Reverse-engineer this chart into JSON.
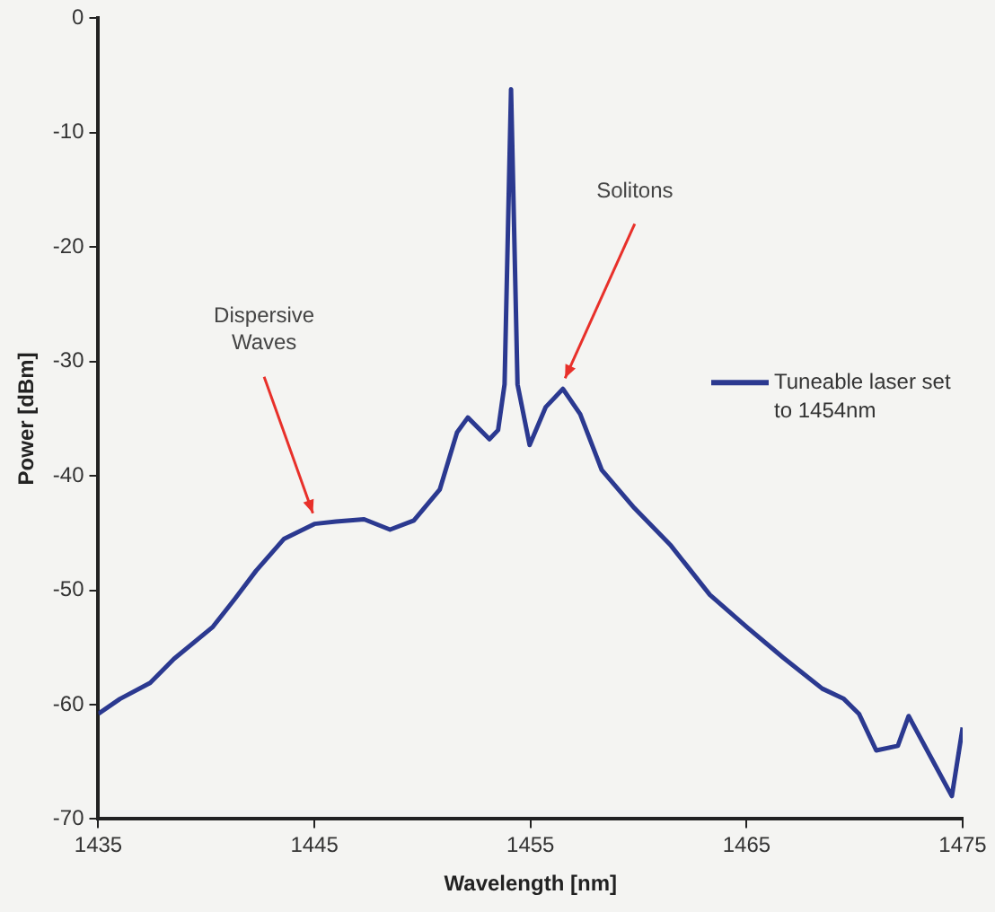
{
  "chart_data": {
    "type": "line",
    "xlabel": "Wavelength [nm]",
    "ylabel": "Power [dBm]",
    "x": [
      1435,
      1436,
      1437.4,
      1438.5,
      1440.3,
      1441.3,
      1442.3,
      1443.6,
      1445,
      1446,
      1447.3,
      1448.5,
      1449.6,
      1450.8,
      1451.6,
      1452.1,
      1453.1,
      1453.5,
      1453.8,
      1454.1,
      1454.4,
      1454.96,
      1455.7,
      1456.5,
      1457.3,
      1458.3,
      1459.8,
      1461.5,
      1463.3,
      1465,
      1466.7,
      1468.5,
      1469.5,
      1470.2,
      1471,
      1472,
      1472.5,
      1473.7,
      1474.5,
      1475
    ],
    "series": [
      {
        "name": "Tuneable laser set to 1454nm",
        "color": "#2b3990",
        "values": [
          -60.8,
          -59.5,
          -58.1,
          -56,
          -53.2,
          -50.8,
          -48.3,
          -45.5,
          -44.2,
          -44,
          -43.8,
          -44.7,
          -43.9,
          -41.2,
          -36.2,
          -34.9,
          -36.8,
          -36,
          -32,
          -6.2,
          -32,
          -37.3,
          -34,
          -32.4,
          -34.6,
          -39.5,
          -42.8,
          -46.1,
          -50.4,
          -53.2,
          -55.9,
          -58.6,
          -59.5,
          -60.8,
          -64,
          -63.6,
          -61,
          -65.2,
          -68,
          -62
        ]
      }
    ],
    "xlim": [
      1435,
      1475
    ],
    "xticks": [
      1435,
      1445,
      1455,
      1465,
      1475
    ],
    "ylim": [
      -70,
      0
    ],
    "yticks": [
      -70,
      -60,
      -50,
      -40,
      -30,
      -20,
      -10,
      0
    ],
    "grid": false,
    "legend": "right",
    "marker": "none",
    "line_style": "solid",
    "annotations": [
      {
        "text": "Dispersive Waves",
        "x": 1445,
        "y": -44.2
      },
      {
        "text": "Solitons",
        "x": 1456.5,
        "y": -32.4
      }
    ]
  }
}
